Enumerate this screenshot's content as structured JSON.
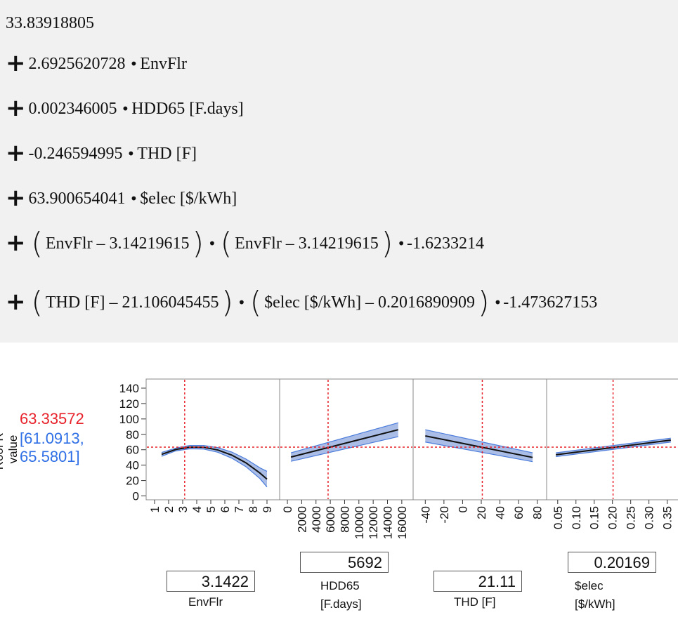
{
  "formula": {
    "intercept": "33.83918805",
    "terms": [
      {
        "coef": "2.6925620728",
        "var": "EnvFlr"
      },
      {
        "coef": "0.002346005",
        "var": "HDD65 [F.days]"
      },
      {
        "coef": "-0.246594995",
        "var": "THD [F]"
      },
      {
        "coef": "63.900654041",
        "var": "$elec [$/kWh]"
      }
    ],
    "interactions": [
      {
        "a": "EnvFlr – 3.14219615",
        "b": "EnvFlr – 3.14219615",
        "coef": "-1.6233214"
      },
      {
        "a": "THD [F] – 21.106045455",
        "b": "$elec [$/kWh] – 0.2016890909",
        "coef": "-1.473627153"
      }
    ]
  },
  "profiler": {
    "response_label": "Roof R-value",
    "prediction": "63.33572",
    "ci_line1": "[61.0913,",
    "ci_line2": "65.5801]",
    "colors": {
      "prediction": "#e8222a",
      "ci": "#2f6fe6",
      "band": "#a9bde6",
      "band_line": "#4a7bdc",
      "curve": "#111111"
    },
    "factors": [
      {
        "name": "EnvFlr",
        "label1": "EnvFlr",
        "label2": "",
        "current": "3.1422"
      },
      {
        "name": "HDD65",
        "label1": "HDD65",
        "label2": "[F.days]",
        "current": "5692"
      },
      {
        "name": "THD",
        "label1": "THD [F]",
        "label2": "",
        "current": "21.11"
      },
      {
        "name": "elec",
        "label1": "$elec",
        "label2": "[$/kWh]",
        "current": "0.20169"
      }
    ]
  },
  "chart_data": {
    "type": "line",
    "title": "",
    "ylabel": "Roof R-value",
    "ylim": [
      -5,
      150
    ],
    "yticks": [
      0,
      20,
      40,
      60,
      80,
      100,
      120,
      140
    ],
    "prediction_level": 63.33572,
    "panels": [
      {
        "xlabel": "EnvFlr",
        "xlim": [
          0.8,
          9.5
        ],
        "xticks": [
          "1",
          "2",
          "3",
          "4",
          "5",
          "6",
          "7",
          "8",
          "9"
        ],
        "xtick_values": [
          1,
          2,
          3,
          4,
          5,
          6,
          7,
          8,
          9
        ],
        "current_x": 3.1422,
        "x": [
          1.5,
          2.5,
          3.5,
          4.5,
          5.5,
          6.5,
          7.5,
          8.5,
          9
        ],
        "y": [
          54.0,
          60.3,
          63.4,
          63.2,
          59.7,
          53.0,
          43.0,
          29.7,
          21.8
        ],
        "lower": [
          51.5,
          58.5,
          61.2,
          60.8,
          56.7,
          49.0,
          38.0,
          22.5,
          11.5
        ],
        "upper": [
          56.5,
          62.1,
          65.6,
          65.6,
          62.7,
          57.0,
          48.0,
          36.5,
          32.0
        ]
      },
      {
        "xlabel": "HDD65 [F.days]",
        "xlim": [
          -300,
          16800
        ],
        "xticks": [
          "0",
          "2000",
          "4000",
          "6000",
          "8000",
          "10000",
          "12000",
          "14000",
          "16000"
        ],
        "xtick_values": [
          0,
          2000,
          4000,
          6000,
          8000,
          10000,
          12000,
          14000,
          16000
        ],
        "current_x": 5692,
        "x": [
          500,
          15500
        ],
        "y": [
          50.5,
          86.0
        ],
        "lower": [
          45.0,
          77.0
        ],
        "upper": [
          56.0,
          95.0
        ]
      },
      {
        "xlabel": "THD [F]",
        "xlim": [
          -47,
          84
        ],
        "xticks": [
          "-40",
          "-20",
          "0",
          "20",
          "40",
          "60",
          "80"
        ],
        "xtick_values": [
          -40,
          -20,
          0,
          20,
          40,
          60,
          80
        ],
        "current_x": 21.11,
        "x": [
          -40,
          75
        ],
        "y": [
          78.0,
          50.0
        ],
        "lower": [
          70.0,
          44.5
        ],
        "upper": [
          86.0,
          56.0
        ]
      },
      {
        "xlabel": "$elec [$/kWh]",
        "xlim": [
          0.035,
          0.37
        ],
        "xticks": [
          "0.05",
          "0.10",
          "0.15",
          "0.20",
          "0.25",
          "0.30",
          "0.35"
        ],
        "xtick_values": [
          0.05,
          0.1,
          0.15,
          0.2,
          0.25,
          0.3,
          0.35
        ],
        "current_x": 0.20169,
        "x": [
          0.045,
          0.36
        ],
        "y": [
          53.5,
          72.5
        ],
        "lower": [
          51.0,
          70.0
        ],
        "upper": [
          56.0,
          75.0
        ]
      }
    ]
  }
}
